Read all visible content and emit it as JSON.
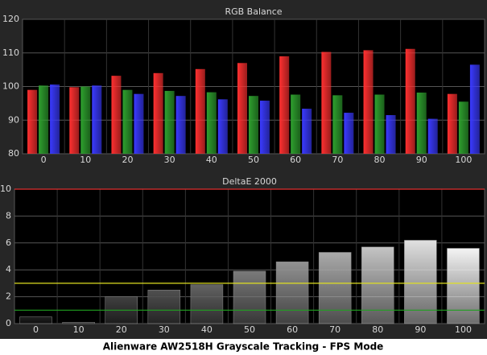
{
  "caption": "Alienware AW2518H Grayscale Tracking - FPS Mode",
  "chart_data": [
    {
      "type": "bar",
      "title": "RGB Balance",
      "categories": [
        "0",
        "10",
        "20",
        "30",
        "40",
        "50",
        "60",
        "70",
        "80",
        "90",
        "100"
      ],
      "series": [
        {
          "name": "Red",
          "color": "#ff3030",
          "values": [
            99,
            99.8,
            103.2,
            104,
            105.2,
            107,
            109,
            110.3,
            110.8,
            111.2,
            97.8
          ]
        },
        {
          "name": "Green",
          "color": "#2ea02e",
          "values": [
            100.3,
            100,
            99,
            98.7,
            98.3,
            97.2,
            97.6,
            97.4,
            97.6,
            98.2,
            95.5
          ]
        },
        {
          "name": "Blue",
          "color": "#3a3aff",
          "values": [
            100.6,
            100.3,
            97.8,
            97.2,
            96.2,
            95.8,
            93.4,
            92.2,
            91.5,
            90.4,
            106.5
          ]
        }
      ],
      "ylim": [
        80,
        120
      ],
      "yticks": [
        80,
        90,
        100,
        110,
        120
      ],
      "grid": true
    },
    {
      "type": "bar",
      "title": "DeltaE 2000",
      "categories": [
        "0",
        "10",
        "20",
        "30",
        "40",
        "50",
        "60",
        "70",
        "80",
        "90",
        "100"
      ],
      "values": [
        0.5,
        0.1,
        2.0,
        2.5,
        2.9,
        3.9,
        4.6,
        5.3,
        5.7,
        6.2,
        5.6
      ],
      "colors": [
        "#202020",
        "#303030",
        "#404040",
        "#505050",
        "#636363",
        "#7a7a7a",
        "#929292",
        "#aaaaaa",
        "#c4c4c4",
        "#e0e0e0",
        "#f4f4f4"
      ],
      "reference_lines": [
        {
          "value": 10,
          "color": "#e03030"
        },
        {
          "value": 3,
          "color": "#e0e020"
        },
        {
          "value": 1,
          "color": "#20a020"
        }
      ],
      "ylim": [
        0,
        10
      ],
      "yticks": [
        0,
        2,
        4,
        6,
        8,
        10
      ],
      "grid": true
    }
  ]
}
